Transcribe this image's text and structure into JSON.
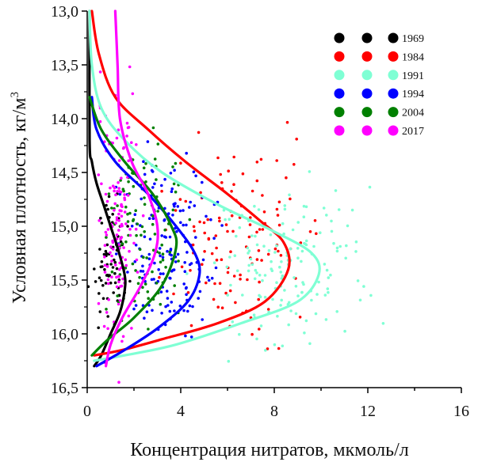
{
  "chart_data": {
    "type": "scatter",
    "title": "",
    "xlabel": "Концентрация нитратов, мкмоль/л",
    "ylabel": "Условная плотность, кг/м",
    "ylabel_superscript": "3",
    "xlim": [
      0,
      16
    ],
    "ylim": [
      16.5,
      13.0
    ],
    "x_ticks": [
      0,
      4,
      8,
      12,
      16
    ],
    "x_tick_labels": [
      "0",
      "4",
      "8",
      "12",
      "16"
    ],
    "y_ticks": [
      13.0,
      13.5,
      14.0,
      14.5,
      15.0,
      15.5,
      16.0,
      16.5
    ],
    "y_tick_labels": [
      "13,0",
      "13,5",
      "14,0",
      "14,5",
      "15,0",
      "15,5",
      "16,0",
      "16,5"
    ],
    "legend_position": "top-right",
    "series": [
      {
        "name": "1969",
        "color": "#000000",
        "curve": [
          [
            0.1,
            13.0
          ],
          [
            0.1,
            14.2
          ],
          [
            0.2,
            14.4
          ],
          [
            0.4,
            14.6
          ],
          [
            0.7,
            14.8
          ],
          [
            1.0,
            15.0
          ],
          [
            1.3,
            15.2
          ],
          [
            1.6,
            15.45
          ],
          [
            1.6,
            15.6
          ],
          [
            1.4,
            15.8
          ],
          [
            1.0,
            16.0
          ],
          [
            0.6,
            16.2
          ],
          [
            0.3,
            16.3
          ]
        ],
        "scatter_center": [
          1.0,
          15.3
        ],
        "scatter_spread": [
          0.6,
          0.4
        ],
        "scatter_count": 70
      },
      {
        "name": "1984",
        "color": "#ff0000",
        "curve": [
          [
            0.2,
            13.0
          ],
          [
            0.5,
            13.4
          ],
          [
            1.2,
            13.8
          ],
          [
            2.6,
            14.1
          ],
          [
            4.2,
            14.4
          ],
          [
            6.0,
            14.7
          ],
          [
            7.4,
            14.95
          ],
          [
            8.4,
            15.15
          ],
          [
            8.6,
            15.4
          ],
          [
            7.6,
            15.7
          ],
          [
            5.6,
            15.9
          ],
          [
            3.2,
            16.05
          ],
          [
            1.5,
            16.15
          ],
          [
            0.3,
            16.2
          ]
        ],
        "scatter_center": [
          6.5,
          15.1
        ],
        "scatter_spread": [
          2.6,
          0.6
        ],
        "scatter_count": 120
      },
      {
        "name": "1991",
        "color": "#7fffd4",
        "curve": [
          [
            0.1,
            13.0
          ],
          [
            0.2,
            13.5
          ],
          [
            0.6,
            13.9
          ],
          [
            1.6,
            14.2
          ],
          [
            3.2,
            14.5
          ],
          [
            5.6,
            14.8
          ],
          [
            8.0,
            15.05
          ],
          [
            9.6,
            15.25
          ],
          [
            9.9,
            15.45
          ],
          [
            9.0,
            15.7
          ],
          [
            6.6,
            15.9
          ],
          [
            3.8,
            16.1
          ],
          [
            1.6,
            16.2
          ],
          [
            0.3,
            16.25
          ]
        ],
        "scatter_center": [
          8.5,
          15.35
        ],
        "scatter_spread": [
          2.8,
          0.5
        ],
        "scatter_count": 150
      },
      {
        "name": "1994",
        "color": "#0000ff",
        "curve": [
          [
            0.2,
            13.8
          ],
          [
            0.4,
            14.1
          ],
          [
            1.2,
            14.4
          ],
          [
            2.6,
            14.7
          ],
          [
            3.8,
            15.0
          ],
          [
            4.6,
            15.25
          ],
          [
            4.8,
            15.45
          ],
          [
            4.3,
            15.7
          ],
          [
            3.0,
            15.95
          ],
          [
            1.6,
            16.15
          ],
          [
            0.4,
            16.3
          ]
        ],
        "scatter_center": [
          3.5,
          15.2
        ],
        "scatter_spread": [
          1.5,
          0.6
        ],
        "scatter_count": 160
      },
      {
        "name": "2004",
        "color": "#008000",
        "curve": [
          [
            0.1,
            13.8
          ],
          [
            0.6,
            14.1
          ],
          [
            1.6,
            14.4
          ],
          [
            2.8,
            14.7
          ],
          [
            3.6,
            15.0
          ],
          [
            3.8,
            15.2
          ],
          [
            3.2,
            15.55
          ],
          [
            2.0,
            15.85
          ],
          [
            0.9,
            16.05
          ],
          [
            0.2,
            16.2
          ]
        ],
        "scatter_center": [
          2.5,
          15.0
        ],
        "scatter_spread": [
          1.4,
          0.7
        ],
        "scatter_count": 110
      },
      {
        "name": "2017",
        "color": "#ff00ff",
        "curve": [
          [
            1.2,
            13.0
          ],
          [
            1.3,
            13.5
          ],
          [
            1.4,
            14.0
          ],
          [
            1.9,
            14.4
          ],
          [
            2.6,
            14.7
          ],
          [
            3.0,
            15.0
          ],
          [
            2.9,
            15.25
          ],
          [
            2.3,
            15.55
          ],
          [
            1.5,
            15.85
          ],
          [
            1.0,
            16.1
          ],
          [
            0.8,
            16.3
          ]
        ],
        "scatter_center": [
          1.3,
          15.0
        ],
        "scatter_spread": [
          0.7,
          0.8
        ],
        "scatter_count": 140
      }
    ]
  }
}
